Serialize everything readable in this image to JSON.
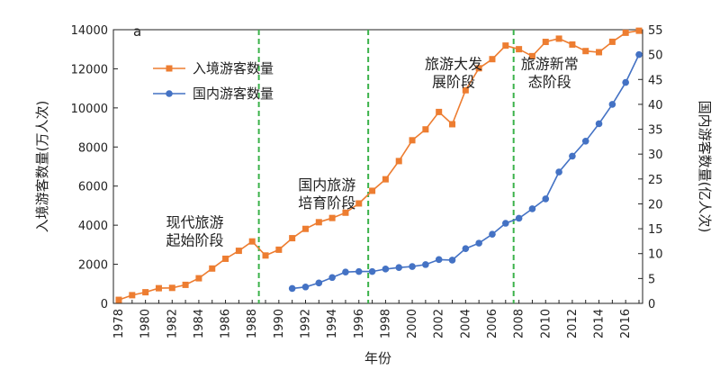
{
  "chart_data": {
    "type": "line",
    "panel_label": "a",
    "xlabel": "年份",
    "ylabel_left": "入境游客数量(万人次)",
    "ylabel_right": "国内游客数量(亿人次)",
    "xlim": [
      1978,
      2017
    ],
    "ylim_left": [
      0,
      14000
    ],
    "ylim_right": [
      0,
      55
    ],
    "x_ticks": [
      1978,
      1980,
      1982,
      1984,
      1986,
      1988,
      1990,
      1992,
      1994,
      1996,
      1998,
      2000,
      2002,
      2004,
      2006,
      2008,
      2010,
      2012,
      2014,
      2016
    ],
    "y_left_ticks": [
      0,
      2000,
      4000,
      6000,
      8000,
      10000,
      12000,
      14000
    ],
    "y_right_ticks": [
      0,
      5,
      10,
      15,
      20,
      25,
      30,
      35,
      40,
      45,
      50,
      55
    ],
    "grid": false,
    "legend_position": "top-left",
    "series": [
      {
        "name": "入境游客数量",
        "axis": "left",
        "marker": "square",
        "color": "#ED7D31",
        "x": [
          1978,
          1979,
          1980,
          1981,
          1982,
          1983,
          1984,
          1985,
          1986,
          1987,
          1988,
          1989,
          1990,
          1991,
          1992,
          1993,
          1994,
          1995,
          1996,
          1997,
          1998,
          1999,
          2000,
          2001,
          2002,
          2003,
          2004,
          2005,
          2006,
          2007,
          2008,
          2009,
          2010,
          2011,
          2012,
          2013,
          2014,
          2015,
          2016,
          2017
        ],
        "values": [
          181,
          420,
          570,
          776,
          792,
          948,
          1285,
          1783,
          2282,
          2690,
          3169,
          2450,
          2746,
          3335,
          3811,
          4152,
          4368,
          4639,
          5113,
          5759,
          6348,
          7280,
          8344,
          8901,
          9791,
          9166,
          10904,
          12029,
          12494,
          13187,
          13003,
          12648,
          13376,
          13542,
          13241,
          12908,
          12850,
          13382,
          13844,
          13948
        ]
      },
      {
        "name": "国内游客数量",
        "axis": "right",
        "marker": "circle",
        "color": "#4472C4",
        "x": [
          1991,
          1992,
          1993,
          1994,
          1995,
          1996,
          1997,
          1998,
          1999,
          2000,
          2001,
          2002,
          2003,
          2004,
          2005,
          2006,
          2007,
          2008,
          2009,
          2010,
          2011,
          2012,
          2013,
          2014,
          2015,
          2016,
          2017
        ],
        "values": [
          3.0,
          3.3,
          4.1,
          5.2,
          6.3,
          6.4,
          6.4,
          6.9,
          7.2,
          7.4,
          7.8,
          8.8,
          8.7,
          11.0,
          12.1,
          13.9,
          16.1,
          17.1,
          19.0,
          21.0,
          26.4,
          29.6,
          32.6,
          36.1,
          40.0,
          44.4,
          50.0
        ]
      }
    ],
    "dividers": [
      1988.5,
      1996.7,
      2007.6
    ],
    "stages": [
      {
        "lines": [
          "现代旅游",
          "起始阶段"
        ],
        "x": 1983.7,
        "y": 3900
      },
      {
        "lines": [
          "国内旅游",
          "培育阶段"
        ],
        "x": 1993.6,
        "y": 5800
      },
      {
        "lines": [
          "旅游大发",
          "展阶段"
        ],
        "x": 2003.1,
        "y": 12000
      },
      {
        "lines": [
          "旅游新常",
          "态阶段"
        ],
        "x": 2010.3,
        "y": 12000
      }
    ]
  }
}
